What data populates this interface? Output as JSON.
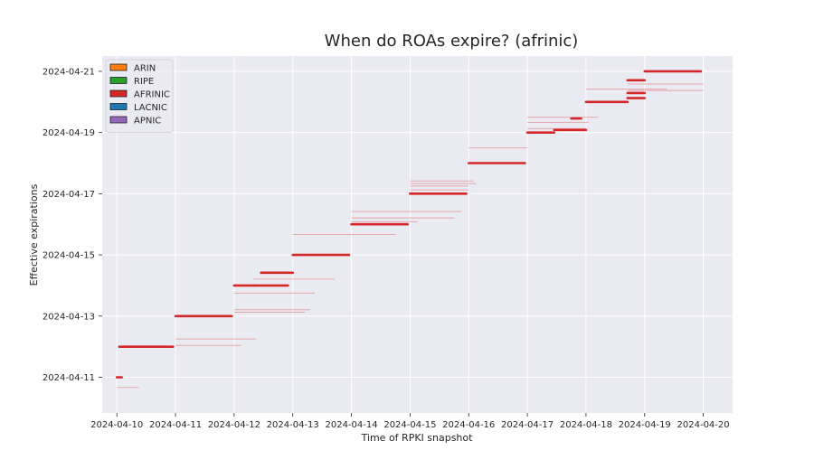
{
  "chart_data": {
    "type": "line",
    "title": "When do ROAs expire? (afrinic)",
    "xlabel": "Time of RPKI snapshot",
    "ylabel": "Effective expirations",
    "x_range": [
      "2024-04-09 18:00",
      "2024-04-20 12:00"
    ],
    "y_range": [
      "2024-04-09 20:00",
      "2024-04-21 12:00"
    ],
    "x_ticks": [
      "2024-04-10",
      "2024-04-11",
      "2024-04-12",
      "2024-04-13",
      "2024-04-14",
      "2024-04-15",
      "2024-04-16",
      "2024-04-17",
      "2024-04-18",
      "2024-04-19",
      "2024-04-20"
    ],
    "y_ticks": [
      "2024-04-11",
      "2024-04-13",
      "2024-04-15",
      "2024-04-17",
      "2024-04-19",
      "2024-04-21"
    ],
    "grid": true,
    "legend_position": "top-left",
    "legend": [
      {
        "name": "ARIN",
        "color": "#ff7f0e"
      },
      {
        "name": "RIPE",
        "color": "#2ca02c"
      },
      {
        "name": "AFRINIC",
        "color": "#d62728"
      },
      {
        "name": "LACNIC",
        "color": "#1f77b4"
      },
      {
        "name": "APNIC",
        "color": "#9467bd"
      }
    ],
    "series": [
      {
        "name": "AFRINIC",
        "color": "#d62728",
        "main_segments": [
          {
            "x_start": "2024-04-10 00:00",
            "x_end": "2024-04-10 02:00",
            "y": "2024-04-11 00:00"
          },
          {
            "x_start": "2024-04-10 01:00",
            "x_end": "2024-04-10 23:00",
            "y": "2024-04-12 00:00"
          },
          {
            "x_start": "2024-04-11 00:00",
            "x_end": "2024-04-11 23:00",
            "y": "2024-04-13 00:00"
          },
          {
            "x_start": "2024-04-12 00:00",
            "x_end": "2024-04-12 08:00",
            "y": "2024-04-14 00:00"
          },
          {
            "x_start": "2024-04-12 08:00",
            "x_end": "2024-04-12 22:00",
            "y": "2024-04-14 00:00"
          },
          {
            "x_start": "2024-04-12 11:00",
            "x_end": "2024-04-12 24:00",
            "y": "2024-04-14 10:00"
          },
          {
            "x_start": "2024-04-13 00:00",
            "x_end": "2024-04-13 23:00",
            "y": "2024-04-15 00:00"
          },
          {
            "x_start": "2024-04-14 00:00",
            "x_end": "2024-04-14 23:00",
            "y": "2024-04-16 00:00"
          },
          {
            "x_start": "2024-04-15 00:00",
            "x_end": "2024-04-15 23:00",
            "y": "2024-04-17 00:00"
          },
          {
            "x_start": "2024-04-16 00:00",
            "x_end": "2024-04-16 23:00",
            "y": "2024-04-18 00:00"
          },
          {
            "x_start": "2024-04-17 00:00",
            "x_end": "2024-04-17 11:00",
            "y": "2024-04-19 00:00"
          },
          {
            "x_start": "2024-04-17 11:00",
            "x_end": "2024-04-17 24:00",
            "y": "2024-04-19 02:00"
          },
          {
            "x_start": "2024-04-17 18:00",
            "x_end": "2024-04-17 22:00",
            "y": "2024-04-19 11:00"
          },
          {
            "x_start": "2024-04-18 00:00",
            "x_end": "2024-04-18 17:00",
            "y": "2024-04-20 00:00"
          },
          {
            "x_start": "2024-04-18 17:00",
            "x_end": "2024-04-18 24:00",
            "y": "2024-04-20 03:00"
          },
          {
            "x_start": "2024-04-18 17:00",
            "x_end": "2024-04-18 24:00",
            "y": "2024-04-20 07:00"
          },
          {
            "x_start": "2024-04-18 17:00",
            "x_end": "2024-04-18 24:00",
            "y": "2024-04-20 17:00"
          },
          {
            "x_start": "2024-04-19 00:00",
            "x_end": "2024-04-19 23:00",
            "y": "2024-04-21 00:00"
          }
        ],
        "faint_segments": [
          {
            "x_start": "2024-04-10 00:00",
            "x_end": "2024-04-10 09:00",
            "y": "2024-04-10 16:00"
          },
          {
            "x_start": "2024-04-11 00:00",
            "x_end": "2024-04-12 09:00",
            "y": "2024-04-12 06:00"
          },
          {
            "x_start": "2024-04-11 00:00",
            "x_end": "2024-04-12 03:00",
            "y": "2024-04-12 01:00"
          },
          {
            "x_start": "2024-04-12 00:00",
            "x_end": "2024-04-13 09:00",
            "y": "2024-04-13 18:00"
          },
          {
            "x_start": "2024-04-12 00:00",
            "x_end": "2024-04-13 07:00",
            "y": "2024-04-13 05:00"
          },
          {
            "x_start": "2024-04-12 00:00",
            "x_end": "2024-04-13 05:00",
            "y": "2024-04-13 03:00"
          },
          {
            "x_start": "2024-04-12 08:00",
            "x_end": "2024-04-13 17:00",
            "y": "2024-04-14 05:00"
          },
          {
            "x_start": "2024-04-13 00:00",
            "x_end": "2024-04-14 18:00",
            "y": "2024-04-15 16:00"
          },
          {
            "x_start": "2024-04-14 00:00",
            "x_end": "2024-04-15 21:00",
            "y": "2024-04-16 10:00"
          },
          {
            "x_start": "2024-04-14 00:00",
            "x_end": "2024-04-15 18:00",
            "y": "2024-04-16 05:00"
          },
          {
            "x_start": "2024-04-14 00:00",
            "x_end": "2024-04-15 03:00",
            "y": "2024-04-16 02:00"
          },
          {
            "x_start": "2024-04-15 00:00",
            "x_end": "2024-04-16 02:00",
            "y": "2024-04-17 10:00"
          },
          {
            "x_start": "2024-04-15 00:00",
            "x_end": "2024-04-16 03:00",
            "y": "2024-04-17 08:00"
          },
          {
            "x_start": "2024-04-15 00:00",
            "x_end": "2024-04-16 00:00",
            "y": "2024-04-17 06:00"
          },
          {
            "x_start": "2024-04-15 00:00",
            "x_end": "2024-04-16 00:00",
            "y": "2024-04-17 03:00"
          },
          {
            "x_start": "2024-04-16 00:00",
            "x_end": "2024-04-17 00:00",
            "y": "2024-04-18 12:00"
          },
          {
            "x_start": "2024-04-17 00:00",
            "x_end": "2024-04-18 05:00",
            "y": "2024-04-19 12:00"
          },
          {
            "x_start": "2024-04-17 00:00",
            "x_end": "2024-04-18 01:00",
            "y": "2024-04-19 08:00"
          },
          {
            "x_start": "2024-04-17 00:00",
            "x_end": "2024-04-18 00:00",
            "y": "2024-04-19 03:00"
          },
          {
            "x_start": "2024-04-18 00:00",
            "x_end": "2024-04-19 09:00",
            "y": "2024-04-20 10:00"
          },
          {
            "x_start": "2024-04-18 17:00",
            "x_end": "2024-04-20 00:00",
            "y": "2024-04-20 14:00"
          },
          {
            "x_start": "2024-04-18 17:00",
            "x_end": "2024-04-20 00:00",
            "y": "2024-04-20 09:00"
          }
        ]
      }
    ]
  }
}
